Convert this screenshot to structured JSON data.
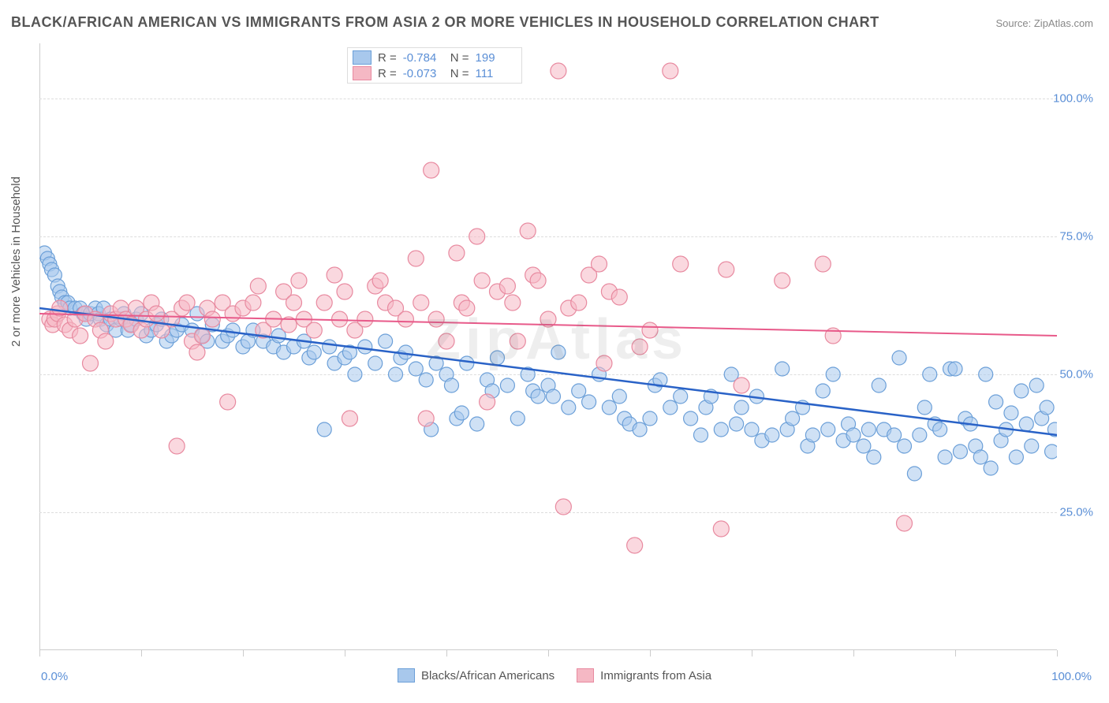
{
  "title": "BLACK/AFRICAN AMERICAN VS IMMIGRANTS FROM ASIA 2 OR MORE VEHICLES IN HOUSEHOLD CORRELATION CHART",
  "source": "Source: ZipAtlas.com",
  "y_axis_label": "2 or more Vehicles in Household",
  "watermark": "ZipAtlas",
  "chart": {
    "type": "scatter",
    "background_color": "#ffffff",
    "grid_color": "#dddddd",
    "axis_color": "#cccccc",
    "xlim": [
      0,
      100
    ],
    "ylim": [
      0,
      110
    ],
    "y_ticks": [
      {
        "value": 25,
        "label": "25.0%"
      },
      {
        "value": 50,
        "label": "50.0%"
      },
      {
        "value": 75,
        "label": "75.0%"
      },
      {
        "value": 100,
        "label": "100.0%"
      }
    ],
    "x_ticks": [
      {
        "value": 0,
        "label": "0.0%"
      },
      {
        "value": 10,
        "label": ""
      },
      {
        "value": 20,
        "label": ""
      },
      {
        "value": 30,
        "label": ""
      },
      {
        "value": 40,
        "label": ""
      },
      {
        "value": 50,
        "label": ""
      },
      {
        "value": 60,
        "label": ""
      },
      {
        "value": 70,
        "label": ""
      },
      {
        "value": 80,
        "label": ""
      },
      {
        "value": 90,
        "label": ""
      },
      {
        "value": 100,
        "label": "100.0%"
      }
    ],
    "series": [
      {
        "name": "Blacks/African Americans",
        "fill_color": "#a8c8ec",
        "stroke_color": "#6b9fd8",
        "fill_opacity": 0.55,
        "marker_radius": 9,
        "line_color": "#2962c7",
        "line_width": 2.5,
        "line_from": [
          0,
          62
        ],
        "line_to": [
          100,
          39
        ],
        "R": "-0.784",
        "N": "199",
        "points": [
          [
            0.5,
            72
          ],
          [
            0.8,
            71
          ],
          [
            1,
            70
          ],
          [
            1.2,
            69
          ],
          [
            1.5,
            68
          ],
          [
            1.8,
            66
          ],
          [
            2,
            65
          ],
          [
            2.2,
            64
          ],
          [
            2.5,
            63
          ],
          [
            2.8,
            63
          ],
          [
            3,
            62
          ],
          [
            3.5,
            62
          ],
          [
            4,
            62
          ],
          [
            4.3,
            61
          ],
          [
            4.6,
            60
          ],
          [
            5,
            61
          ],
          [
            5.5,
            62
          ],
          [
            5.8,
            61
          ],
          [
            6,
            60
          ],
          [
            6.3,
            62
          ],
          [
            6.6,
            59
          ],
          [
            7,
            60
          ],
          [
            7.5,
            58
          ],
          [
            8,
            60
          ],
          [
            8.3,
            61
          ],
          [
            8.7,
            58
          ],
          [
            9,
            59
          ],
          [
            9.5,
            60
          ],
          [
            10,
            61
          ],
          [
            10.5,
            57
          ],
          [
            11,
            58
          ],
          [
            11.5,
            59
          ],
          [
            12,
            60
          ],
          [
            12.5,
            56
          ],
          [
            13,
            57
          ],
          [
            13.5,
            58
          ],
          [
            14,
            59
          ],
          [
            15,
            58
          ],
          [
            15.5,
            61
          ],
          [
            16,
            57
          ],
          [
            16.5,
            56
          ],
          [
            17,
            59
          ],
          [
            18,
            56
          ],
          [
            18.5,
            57
          ],
          [
            19,
            58
          ],
          [
            20,
            55
          ],
          [
            20.5,
            56
          ],
          [
            21,
            58
          ],
          [
            22,
            56
          ],
          [
            23,
            55
          ],
          [
            23.5,
            57
          ],
          [
            24,
            54
          ],
          [
            25,
            55
          ],
          [
            26,
            56
          ],
          [
            26.5,
            53
          ],
          [
            27,
            54
          ],
          [
            28,
            40
          ],
          [
            28.5,
            55
          ],
          [
            29,
            52
          ],
          [
            30,
            53
          ],
          [
            30.5,
            54
          ],
          [
            31,
            50
          ],
          [
            32,
            55
          ],
          [
            33,
            52
          ],
          [
            34,
            56
          ],
          [
            35,
            50
          ],
          [
            35.5,
            53
          ],
          [
            36,
            54
          ],
          [
            37,
            51
          ],
          [
            38,
            49
          ],
          [
            38.5,
            40
          ],
          [
            39,
            52
          ],
          [
            40,
            50
          ],
          [
            40.5,
            48
          ],
          [
            41,
            42
          ],
          [
            41.5,
            43
          ],
          [
            42,
            52
          ],
          [
            43,
            41
          ],
          [
            44,
            49
          ],
          [
            44.5,
            47
          ],
          [
            45,
            53
          ],
          [
            46,
            48
          ],
          [
            47,
            42
          ],
          [
            48,
            50
          ],
          [
            48.5,
            47
          ],
          [
            49,
            46
          ],
          [
            50,
            48
          ],
          [
            50.5,
            46
          ],
          [
            51,
            54
          ],
          [
            52,
            44
          ],
          [
            53,
            47
          ],
          [
            54,
            45
          ],
          [
            55,
            50
          ],
          [
            56,
            44
          ],
          [
            57,
            46
          ],
          [
            57.5,
            42
          ],
          [
            58,
            41
          ],
          [
            59,
            40
          ],
          [
            60,
            42
          ],
          [
            60.5,
            48
          ],
          [
            61,
            49
          ],
          [
            62,
            44
          ],
          [
            63,
            46
          ],
          [
            64,
            42
          ],
          [
            65,
            39
          ],
          [
            65.5,
            44
          ],
          [
            66,
            46
          ],
          [
            67,
            40
          ],
          [
            68,
            50
          ],
          [
            68.5,
            41
          ],
          [
            69,
            44
          ],
          [
            70,
            40
          ],
          [
            70.5,
            46
          ],
          [
            71,
            38
          ],
          [
            72,
            39
          ],
          [
            73,
            51
          ],
          [
            73.5,
            40
          ],
          [
            74,
            42
          ],
          [
            75,
            44
          ],
          [
            75.5,
            37
          ],
          [
            76,
            39
          ],
          [
            77,
            47
          ],
          [
            77.5,
            40
          ],
          [
            78,
            50
          ],
          [
            79,
            38
          ],
          [
            79.5,
            41
          ],
          [
            80,
            39
          ],
          [
            81,
            37
          ],
          [
            81.5,
            40
          ],
          [
            82,
            35
          ],
          [
            82.5,
            48
          ],
          [
            83,
            40
          ],
          [
            84,
            39
          ],
          [
            84.5,
            53
          ],
          [
            85,
            37
          ],
          [
            86,
            32
          ],
          [
            86.5,
            39
          ],
          [
            87,
            44
          ],
          [
            87.5,
            50
          ],
          [
            88,
            41
          ],
          [
            88.5,
            40
          ],
          [
            89,
            35
          ],
          [
            89.5,
            51
          ],
          [
            90,
            51
          ],
          [
            90.5,
            36
          ],
          [
            91,
            42
          ],
          [
            91.5,
            41
          ],
          [
            92,
            37
          ],
          [
            92.5,
            35
          ],
          [
            93,
            50
          ],
          [
            93.5,
            33
          ],
          [
            94,
            45
          ],
          [
            94.5,
            38
          ],
          [
            95,
            40
          ],
          [
            95.5,
            43
          ],
          [
            96,
            35
          ],
          [
            96.5,
            47
          ],
          [
            97,
            41
          ],
          [
            97.5,
            37
          ],
          [
            98,
            48
          ],
          [
            98.5,
            42
          ],
          [
            99,
            44
          ],
          [
            99.5,
            36
          ],
          [
            99.8,
            40
          ]
        ]
      },
      {
        "name": "Immigrants from Asia",
        "fill_color": "#f5b8c4",
        "stroke_color": "#e88aa0",
        "fill_opacity": 0.55,
        "marker_radius": 10,
        "line_color": "#e85a8a",
        "line_width": 2,
        "line_from": [
          0,
          61
        ],
        "line_to": [
          100,
          57
        ],
        "R": "-0.073",
        "N": "111",
        "points": [
          [
            1,
            60
          ],
          [
            1.3,
            59
          ],
          [
            1.5,
            60
          ],
          [
            1.8,
            61
          ],
          [
            2,
            62
          ],
          [
            2.5,
            59
          ],
          [
            3,
            58
          ],
          [
            3.5,
            60
          ],
          [
            4,
            57
          ],
          [
            4.5,
            61
          ],
          [
            5,
            52
          ],
          [
            5.5,
            60
          ],
          [
            6,
            58
          ],
          [
            6.5,
            56
          ],
          [
            7,
            61
          ],
          [
            7.5,
            60
          ],
          [
            8,
            62
          ],
          [
            8.5,
            60
          ],
          [
            9,
            59
          ],
          [
            9.5,
            62
          ],
          [
            10,
            58
          ],
          [
            10.5,
            60
          ],
          [
            11,
            63
          ],
          [
            11.5,
            61
          ],
          [
            12,
            58
          ],
          [
            13,
            60
          ],
          [
            13.5,
            37
          ],
          [
            14,
            62
          ],
          [
            14.5,
            63
          ],
          [
            15,
            56
          ],
          [
            15.5,
            54
          ],
          [
            16,
            57
          ],
          [
            16.5,
            62
          ],
          [
            17,
            60
          ],
          [
            18,
            63
          ],
          [
            18.5,
            45
          ],
          [
            19,
            61
          ],
          [
            20,
            62
          ],
          [
            21,
            63
          ],
          [
            21.5,
            66
          ],
          [
            22,
            58
          ],
          [
            23,
            60
          ],
          [
            24,
            65
          ],
          [
            24.5,
            59
          ],
          [
            25,
            63
          ],
          [
            25.5,
            67
          ],
          [
            26,
            60
          ],
          [
            27,
            58
          ],
          [
            28,
            63
          ],
          [
            29,
            68
          ],
          [
            29.5,
            60
          ],
          [
            30,
            65
          ],
          [
            30.5,
            42
          ],
          [
            31,
            58
          ],
          [
            32,
            60
          ],
          [
            33,
            66
          ],
          [
            33.5,
            67
          ],
          [
            34,
            63
          ],
          [
            35,
            62
          ],
          [
            36,
            60
          ],
          [
            37,
            71
          ],
          [
            37.5,
            63
          ],
          [
            38,
            42
          ],
          [
            38.5,
            87
          ],
          [
            39,
            60
          ],
          [
            40,
            56
          ],
          [
            41,
            72
          ],
          [
            41.5,
            63
          ],
          [
            42,
            62
          ],
          [
            43,
            75
          ],
          [
            43.5,
            67
          ],
          [
            44,
            45
          ],
          [
            45,
            65
          ],
          [
            46,
            66
          ],
          [
            46.5,
            63
          ],
          [
            47,
            56
          ],
          [
            48,
            76
          ],
          [
            48.5,
            68
          ],
          [
            49,
            67
          ],
          [
            50,
            60
          ],
          [
            51,
            105
          ],
          [
            51.5,
            26
          ],
          [
            52,
            62
          ],
          [
            53,
            63
          ],
          [
            54,
            68
          ],
          [
            55,
            70
          ],
          [
            55.5,
            52
          ],
          [
            56,
            65
          ],
          [
            57,
            64
          ],
          [
            58.5,
            19
          ],
          [
            59,
            55
          ],
          [
            60,
            58
          ],
          [
            62,
            105
          ],
          [
            63,
            70
          ],
          [
            67,
            22
          ],
          [
            67.5,
            69
          ],
          [
            69,
            48
          ],
          [
            73,
            67
          ],
          [
            77,
            70
          ],
          [
            78,
            57
          ],
          [
            85,
            23
          ]
        ]
      }
    ],
    "bottom_legend": [
      {
        "label": "Blacks/African Americans",
        "fill": "#a8c8ec",
        "stroke": "#6b9fd8"
      },
      {
        "label": "Immigrants from Asia",
        "fill": "#f5b8c4",
        "stroke": "#e88aa0"
      }
    ]
  }
}
